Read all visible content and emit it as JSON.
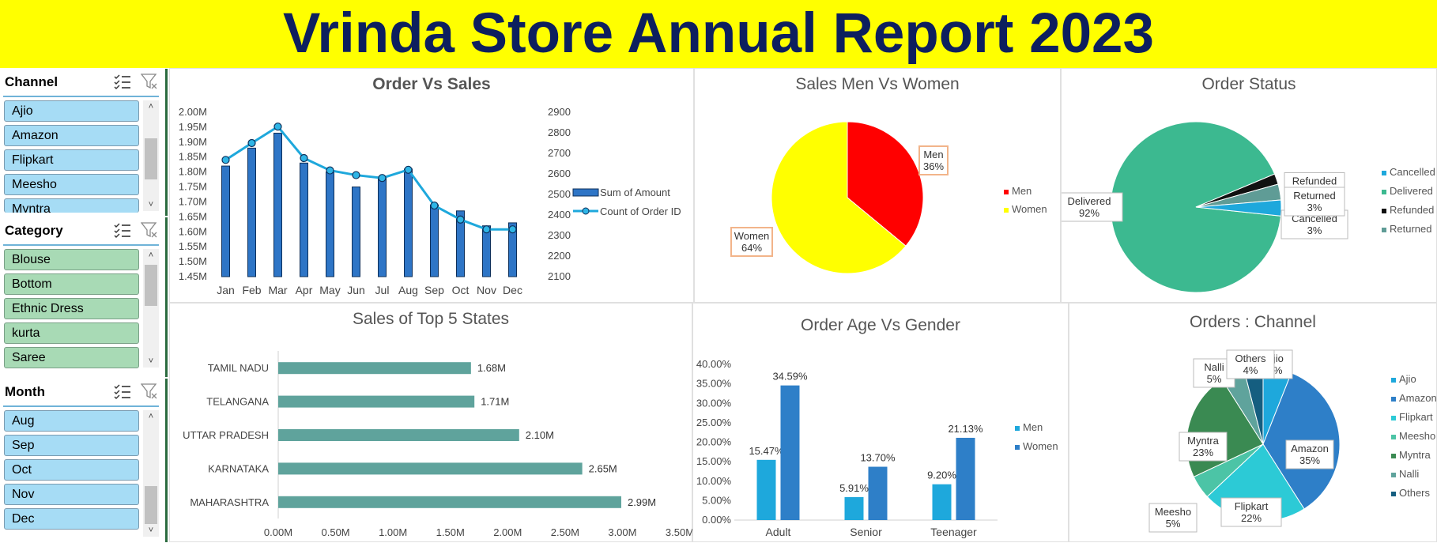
{
  "report": {
    "title": "Vrinda Store Annual Report 2023"
  },
  "colors": {
    "banner": "#ffff00",
    "title": "#0d1f5e",
    "bar_blue": "#2e75c6",
    "line_blue": "#1ea8dc",
    "men": "#ff0000",
    "women": "#ffff00",
    "teal": "#5fa39c",
    "delivered": "#3cb990"
  },
  "slicers": {
    "channel": {
      "title": "Channel",
      "items": [
        "Ajio",
        "Amazon",
        "Flipkart",
        "Meesho",
        "Myntra"
      ],
      "multi_select_icon": "multi-select-icon",
      "clear_icon": "clear-filter-icon"
    },
    "category": {
      "title": "Category",
      "items": [
        "Blouse",
        "Bottom",
        "Ethnic Dress",
        "kurta",
        "Saree"
      ],
      "multi_select_icon": "multi-select-icon",
      "clear_icon": "clear-filter-icon"
    },
    "month": {
      "title": "Month",
      "items": [
        "Aug",
        "Sep",
        "Oct",
        "Nov",
        "Dec"
      ],
      "multi_select_icon": "multi-select-icon",
      "clear_icon": "clear-filter-icon"
    }
  },
  "chart_data": [
    {
      "id": "order_vs_sales",
      "type": "bar",
      "title": "Order Vs Sales",
      "categories": [
        "Jan",
        "Feb",
        "Mar",
        "Apr",
        "May",
        "Jun",
        "Jul",
        "Aug",
        "Sep",
        "Oct",
        "Nov",
        "Dec"
      ],
      "series": [
        {
          "name": "Sum of Amount",
          "type": "bar",
          "axis": "left",
          "values": [
            1.82,
            1.88,
            1.93,
            1.83,
            1.8,
            1.75,
            1.78,
            1.81,
            1.69,
            1.67,
            1.62,
            1.63
          ]
        },
        {
          "name": "Count of Order ID",
          "type": "line",
          "axis": "right",
          "values": [
            2668,
            2750,
            2830,
            2677,
            2617,
            2594,
            2580,
            2620,
            2446,
            2378,
            2330,
            2330
          ]
        }
      ],
      "ylim": [
        1.45,
        2.0
      ],
      "y_ticks": [
        "1.45M",
        "1.50M",
        "1.55M",
        "1.60M",
        "1.65M",
        "1.70M",
        "1.75M",
        "1.80M",
        "1.85M",
        "1.90M",
        "1.95M",
        "2.00M"
      ],
      "y2lim": [
        2100,
        2900
      ],
      "y2_ticks": [
        "2100",
        "2200",
        "2300",
        "2400",
        "2500",
        "2600",
        "2700",
        "2800",
        "2900"
      ],
      "legend": "right"
    },
    {
      "id": "sales_men_women",
      "type": "pie",
      "title": "Sales Men Vs Women",
      "categories": [
        "Men",
        "Women"
      ],
      "values": [
        36,
        64
      ],
      "data_labels": [
        [
          "Men",
          "36%"
        ],
        [
          "Women",
          "64%"
        ]
      ],
      "colors": [
        "#ff0000",
        "#ffff00"
      ],
      "legend": "right"
    },
    {
      "id": "order_status",
      "type": "pie",
      "title": "Order Status",
      "categories": [
        "Cancelled",
        "Delivered",
        "Refunded",
        "Returned"
      ],
      "values": [
        3,
        92,
        2,
        3
      ],
      "data_labels": [
        [
          "Cancelled",
          "3%"
        ],
        [
          "Delivered",
          "92%"
        ],
        [
          "Refunded",
          ""
        ],
        [
          "Returned",
          "3%"
        ]
      ],
      "colors": [
        "#1ea8dc",
        "#3cb990",
        "#111111",
        "#5f9c96"
      ],
      "legend": "right"
    },
    {
      "id": "top5_states",
      "type": "bar",
      "orientation": "horizontal",
      "title": "Sales of Top 5 States",
      "categories": [
        "TAMIL NADU",
        "TELANGANA",
        "UTTAR PRADESH",
        "KARNATAKA",
        "MAHARASHTRA"
      ],
      "values": [
        1.68,
        1.71,
        2.1,
        2.65,
        2.99
      ],
      "data_labels": [
        "1.68M",
        "1.71M",
        "2.10M",
        "2.65M",
        "2.99M"
      ],
      "xlim": [
        0,
        3.5
      ],
      "x_ticks": [
        "0.00M",
        "0.50M",
        "1.00M",
        "1.50M",
        "2.00M",
        "2.50M",
        "3.00M",
        "3.50M"
      ]
    },
    {
      "id": "age_vs_gender",
      "type": "bar",
      "title": "Order Age Vs Gender",
      "categories": [
        "Adult",
        "Senior",
        "Teenager"
      ],
      "series": [
        {
          "name": "Men",
          "values": [
            15.47,
            5.91,
            9.2
          ],
          "labels": [
            "15.47%",
            "5.91%",
            "9.20%"
          ]
        },
        {
          "name": "Women",
          "values": [
            34.59,
            13.7,
            21.13
          ],
          "labels": [
            "34.59%",
            "13.70%",
            "21.13%"
          ]
        }
      ],
      "ylim": [
        0,
        40
      ],
      "y_ticks": [
        "0.00%",
        "5.00%",
        "10.00%",
        "15.00%",
        "20.00%",
        "25.00%",
        "30.00%",
        "35.00%",
        "40.00%"
      ],
      "legend": "right"
    },
    {
      "id": "orders_channel",
      "type": "pie",
      "title": "Orders : Channel",
      "categories": [
        "Ajio",
        "Amazon",
        "Flipkart",
        "Meesho",
        "Myntra",
        "Nalli",
        "Others"
      ],
      "values": [
        6,
        35,
        22,
        5,
        23,
        5,
        4
      ],
      "data_labels": [
        [
          "Ajio",
          "6%"
        ],
        [
          "Amazon",
          "35%"
        ],
        [
          "Flipkart",
          "22%"
        ],
        [
          "Meesho",
          "5%"
        ],
        [
          "Myntra",
          "23%"
        ],
        [
          "Nalli",
          "5%"
        ],
        [
          "Others",
          "4%"
        ]
      ],
      "colors": [
        "#1ea8dc",
        "#2e7fc8",
        "#2ccad6",
        "#4cc4a6",
        "#3a8a52",
        "#5fa39c",
        "#155e80"
      ],
      "legend": "right"
    }
  ]
}
